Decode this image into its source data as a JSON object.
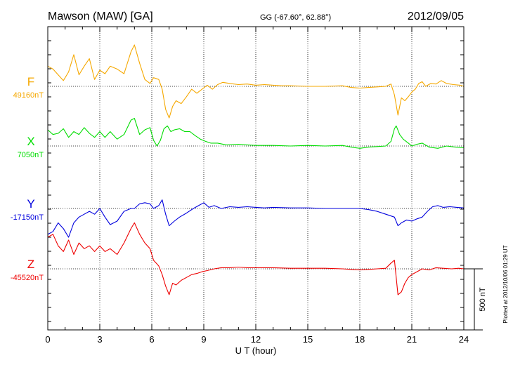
{
  "chart_data": {
    "type": "line",
    "title": "Mawson (MAW)  [GA]",
    "coordinates": "GG (-67.60°,  62.88°)",
    "date": "2012/09/05",
    "xlabel": "U T (hour)",
    "xlim": [
      0,
      24
    ],
    "xticks": [
      "0",
      "3",
      "6",
      "9",
      "12",
      "15",
      "18",
      "21",
      "24"
    ],
    "scale_label": "500 nT",
    "plotted_note": "Plotted at 2012/10/06 01:29 UT",
    "grid": true,
    "series": [
      {
        "name": "F",
        "baseline": "49160nT",
        "color": "#f5a800",
        "points": [
          [
            0,
            -35
          ],
          [
            0.3,
            -30
          ],
          [
            0.6,
            -20
          ],
          [
            0.9,
            -10
          ],
          [
            1.2,
            -25
          ],
          [
            1.5,
            -55
          ],
          [
            1.8,
            -20
          ],
          [
            2.1,
            -35
          ],
          [
            2.4,
            -48
          ],
          [
            2.7,
            -12
          ],
          [
            3.0,
            -28
          ],
          [
            3.3,
            -22
          ],
          [
            3.6,
            -35
          ],
          [
            4.0,
            -30
          ],
          [
            4.4,
            -22
          ],
          [
            4.8,
            -60
          ],
          [
            5.0,
            -72
          ],
          [
            5.3,
            -40
          ],
          [
            5.6,
            -12
          ],
          [
            5.9,
            -5
          ],
          [
            6.1,
            -15
          ],
          [
            6.4,
            -12
          ],
          [
            6.6,
            5
          ],
          [
            6.8,
            40
          ],
          [
            7.0,
            55
          ],
          [
            7.2,
            35
          ],
          [
            7.4,
            25
          ],
          [
            7.7,
            30
          ],
          [
            8.0,
            18
          ],
          [
            8.3,
            5
          ],
          [
            8.6,
            12
          ],
          [
            8.9,
            5
          ],
          [
            9.2,
            -2
          ],
          [
            9.5,
            5
          ],
          [
            9.8,
            -3
          ],
          [
            10.1,
            -7
          ],
          [
            10.5,
            -5
          ],
          [
            11,
            -3
          ],
          [
            11.5,
            -4
          ],
          [
            12,
            -2
          ],
          [
            12.5,
            -3
          ],
          [
            13,
            -2
          ],
          [
            13.5,
            -1
          ],
          [
            14,
            -1
          ],
          [
            15,
            0
          ],
          [
            16,
            0
          ],
          [
            17,
            -1
          ],
          [
            17.5,
            2
          ],
          [
            18,
            3
          ],
          [
            18.5,
            2
          ],
          [
            19,
            1
          ],
          [
            19.5,
            0
          ],
          [
            19.8,
            -4
          ],
          [
            20.0,
            15
          ],
          [
            20.2,
            50
          ],
          [
            20.4,
            20
          ],
          [
            20.6,
            25
          ],
          [
            20.8,
            18
          ],
          [
            21.0,
            10
          ],
          [
            21.2,
            5
          ],
          [
            21.4,
            -5
          ],
          [
            21.6,
            -8
          ],
          [
            21.8,
            0
          ],
          [
            22.1,
            -5
          ],
          [
            22.4,
            -4
          ],
          [
            22.7,
            -10
          ],
          [
            23.0,
            -5
          ],
          [
            23.4,
            -3
          ],
          [
            23.8,
            -2
          ],
          [
            24,
            0
          ]
        ]
      },
      {
        "name": "X",
        "baseline": "7050nT",
        "color": "#00dd00",
        "points": [
          [
            0,
            -28
          ],
          [
            0.3,
            -20
          ],
          [
            0.6,
            -22
          ],
          [
            0.9,
            -30
          ],
          [
            1.2,
            -15
          ],
          [
            1.5,
            -25
          ],
          [
            1.8,
            -20
          ],
          [
            2.1,
            -32
          ],
          [
            2.4,
            -22
          ],
          [
            2.7,
            -15
          ],
          [
            3.0,
            -25
          ],
          [
            3.3,
            -15
          ],
          [
            3.6,
            -25
          ],
          [
            4.0,
            -12
          ],
          [
            4.4,
            -20
          ],
          [
            4.8,
            -45
          ],
          [
            5.0,
            -48
          ],
          [
            5.3,
            -20
          ],
          [
            5.6,
            -28
          ],
          [
            5.9,
            -32
          ],
          [
            6.1,
            -10
          ],
          [
            6.3,
            0
          ],
          [
            6.5,
            -10
          ],
          [
            6.7,
            -30
          ],
          [
            6.9,
            -35
          ],
          [
            7.1,
            -25
          ],
          [
            7.3,
            -28
          ],
          [
            7.6,
            -30
          ],
          [
            7.9,
            -25
          ],
          [
            8.2,
            -25
          ],
          [
            8.5,
            -18
          ],
          [
            8.8,
            -12
          ],
          [
            9.1,
            -8
          ],
          [
            9.4,
            -5
          ],
          [
            9.8,
            -5
          ],
          [
            10.3,
            -2
          ],
          [
            11,
            -3
          ],
          [
            11.5,
            -2
          ],
          [
            12,
            -1
          ],
          [
            13,
            -1
          ],
          [
            14,
            0
          ],
          [
            15,
            -1
          ],
          [
            16,
            0
          ],
          [
            17,
            -1
          ],
          [
            17.5,
            2
          ],
          [
            18,
            4
          ],
          [
            18.5,
            2
          ],
          [
            19,
            1
          ],
          [
            19.5,
            0
          ],
          [
            19.8,
            -8
          ],
          [
            20.0,
            -30
          ],
          [
            20.1,
            -35
          ],
          [
            20.3,
            -20
          ],
          [
            20.5,
            -12
          ],
          [
            20.8,
            -5
          ],
          [
            21.0,
            0
          ],
          [
            21.3,
            -3
          ],
          [
            21.6,
            -5
          ],
          [
            22.0,
            2
          ],
          [
            22.5,
            4
          ],
          [
            23.0,
            0
          ],
          [
            23.5,
            2
          ],
          [
            24,
            3
          ]
        ]
      },
      {
        "name": "Y",
        "baseline": "-17150nT",
        "color": "#0000dd",
        "points": [
          [
            0,
            45
          ],
          [
            0.3,
            40
          ],
          [
            0.6,
            25
          ],
          [
            0.9,
            35
          ],
          [
            1.2,
            50
          ],
          [
            1.5,
            25
          ],
          [
            1.8,
            15
          ],
          [
            2.1,
            10
          ],
          [
            2.4,
            5
          ],
          [
            2.7,
            10
          ],
          [
            3.0,
            0
          ],
          [
            3.3,
            15
          ],
          [
            3.6,
            28
          ],
          [
            4.0,
            22
          ],
          [
            4.4,
            5
          ],
          [
            4.8,
            0
          ],
          [
            5.0,
            0
          ],
          [
            5.3,
            -8
          ],
          [
            5.6,
            -10
          ],
          [
            5.9,
            -8
          ],
          [
            6.1,
            0
          ],
          [
            6.4,
            -5
          ],
          [
            6.6,
            -15
          ],
          [
            6.8,
            10
          ],
          [
            7.0,
            30
          ],
          [
            7.3,
            22
          ],
          [
            7.6,
            15
          ],
          [
            8.0,
            8
          ],
          [
            8.4,
            0
          ],
          [
            8.7,
            -5
          ],
          [
            9.0,
            -10
          ],
          [
            9.3,
            -2
          ],
          [
            9.6,
            -5
          ],
          [
            10,
            0
          ],
          [
            10.5,
            -3
          ],
          [
            11,
            -2
          ],
          [
            11.5,
            -3
          ],
          [
            12,
            -2
          ],
          [
            12.5,
            -1
          ],
          [
            13,
            -2
          ],
          [
            14,
            -1
          ],
          [
            15,
            -1
          ],
          [
            16,
            0
          ],
          [
            17,
            0
          ],
          [
            18,
            0
          ],
          [
            18.5,
            2
          ],
          [
            19,
            5
          ],
          [
            19.5,
            10
          ],
          [
            20.0,
            15
          ],
          [
            20.2,
            30
          ],
          [
            20.4,
            25
          ],
          [
            20.7,
            20
          ],
          [
            21.0,
            22
          ],
          [
            21.3,
            18
          ],
          [
            21.6,
            15
          ],
          [
            21.9,
            5
          ],
          [
            22.2,
            -3
          ],
          [
            22.5,
            -5
          ],
          [
            22.8,
            -2
          ],
          [
            23.2,
            -3
          ],
          [
            23.6,
            -2
          ],
          [
            24,
            -1
          ]
        ]
      },
      {
        "name": "Z",
        "baseline": "-45520nT",
        "color": "#ee0000",
        "points": [
          [
            0,
            -55
          ],
          [
            0.3,
            -60
          ],
          [
            0.6,
            -40
          ],
          [
            0.9,
            -30
          ],
          [
            1.2,
            -50
          ],
          [
            1.5,
            -25
          ],
          [
            1.8,
            -45
          ],
          [
            2.1,
            -35
          ],
          [
            2.4,
            -40
          ],
          [
            2.7,
            -30
          ],
          [
            3.0,
            -40
          ],
          [
            3.3,
            -30
          ],
          [
            3.6,
            -35
          ],
          [
            4.0,
            -25
          ],
          [
            4.4,
            -45
          ],
          [
            4.8,
            -70
          ],
          [
            5.0,
            -80
          ],
          [
            5.3,
            -60
          ],
          [
            5.6,
            -45
          ],
          [
            5.9,
            -35
          ],
          [
            6.1,
            -15
          ],
          [
            6.4,
            -5
          ],
          [
            6.6,
            10
          ],
          [
            6.8,
            30
          ],
          [
            7.0,
            45
          ],
          [
            7.2,
            25
          ],
          [
            7.4,
            28
          ],
          [
            7.7,
            20
          ],
          [
            8.0,
            15
          ],
          [
            8.3,
            10
          ],
          [
            8.6,
            8
          ],
          [
            8.9,
            5
          ],
          [
            9.2,
            3
          ],
          [
            9.6,
            0
          ],
          [
            10.0,
            -2
          ],
          [
            10.5,
            -2
          ],
          [
            11,
            -3
          ],
          [
            11.5,
            -2
          ],
          [
            12,
            -2
          ],
          [
            13,
            -2
          ],
          [
            14,
            -1
          ],
          [
            15,
            -1
          ],
          [
            16,
            -1
          ],
          [
            17,
            0
          ],
          [
            17.5,
            1
          ],
          [
            18,
            2
          ],
          [
            18.5,
            1
          ],
          [
            19,
            0
          ],
          [
            19.5,
            -1
          ],
          [
            19.8,
            -10
          ],
          [
            20.0,
            -15
          ],
          [
            20.2,
            45
          ],
          [
            20.4,
            40
          ],
          [
            20.6,
            25
          ],
          [
            20.8,
            15
          ],
          [
            21.0,
            10
          ],
          [
            21.3,
            5
          ],
          [
            21.6,
            0
          ],
          [
            22.0,
            2
          ],
          [
            22.4,
            -2
          ],
          [
            22.8,
            -1
          ],
          [
            23.3,
            0
          ],
          [
            23.7,
            -1
          ],
          [
            24,
            0
          ]
        ]
      }
    ]
  }
}
